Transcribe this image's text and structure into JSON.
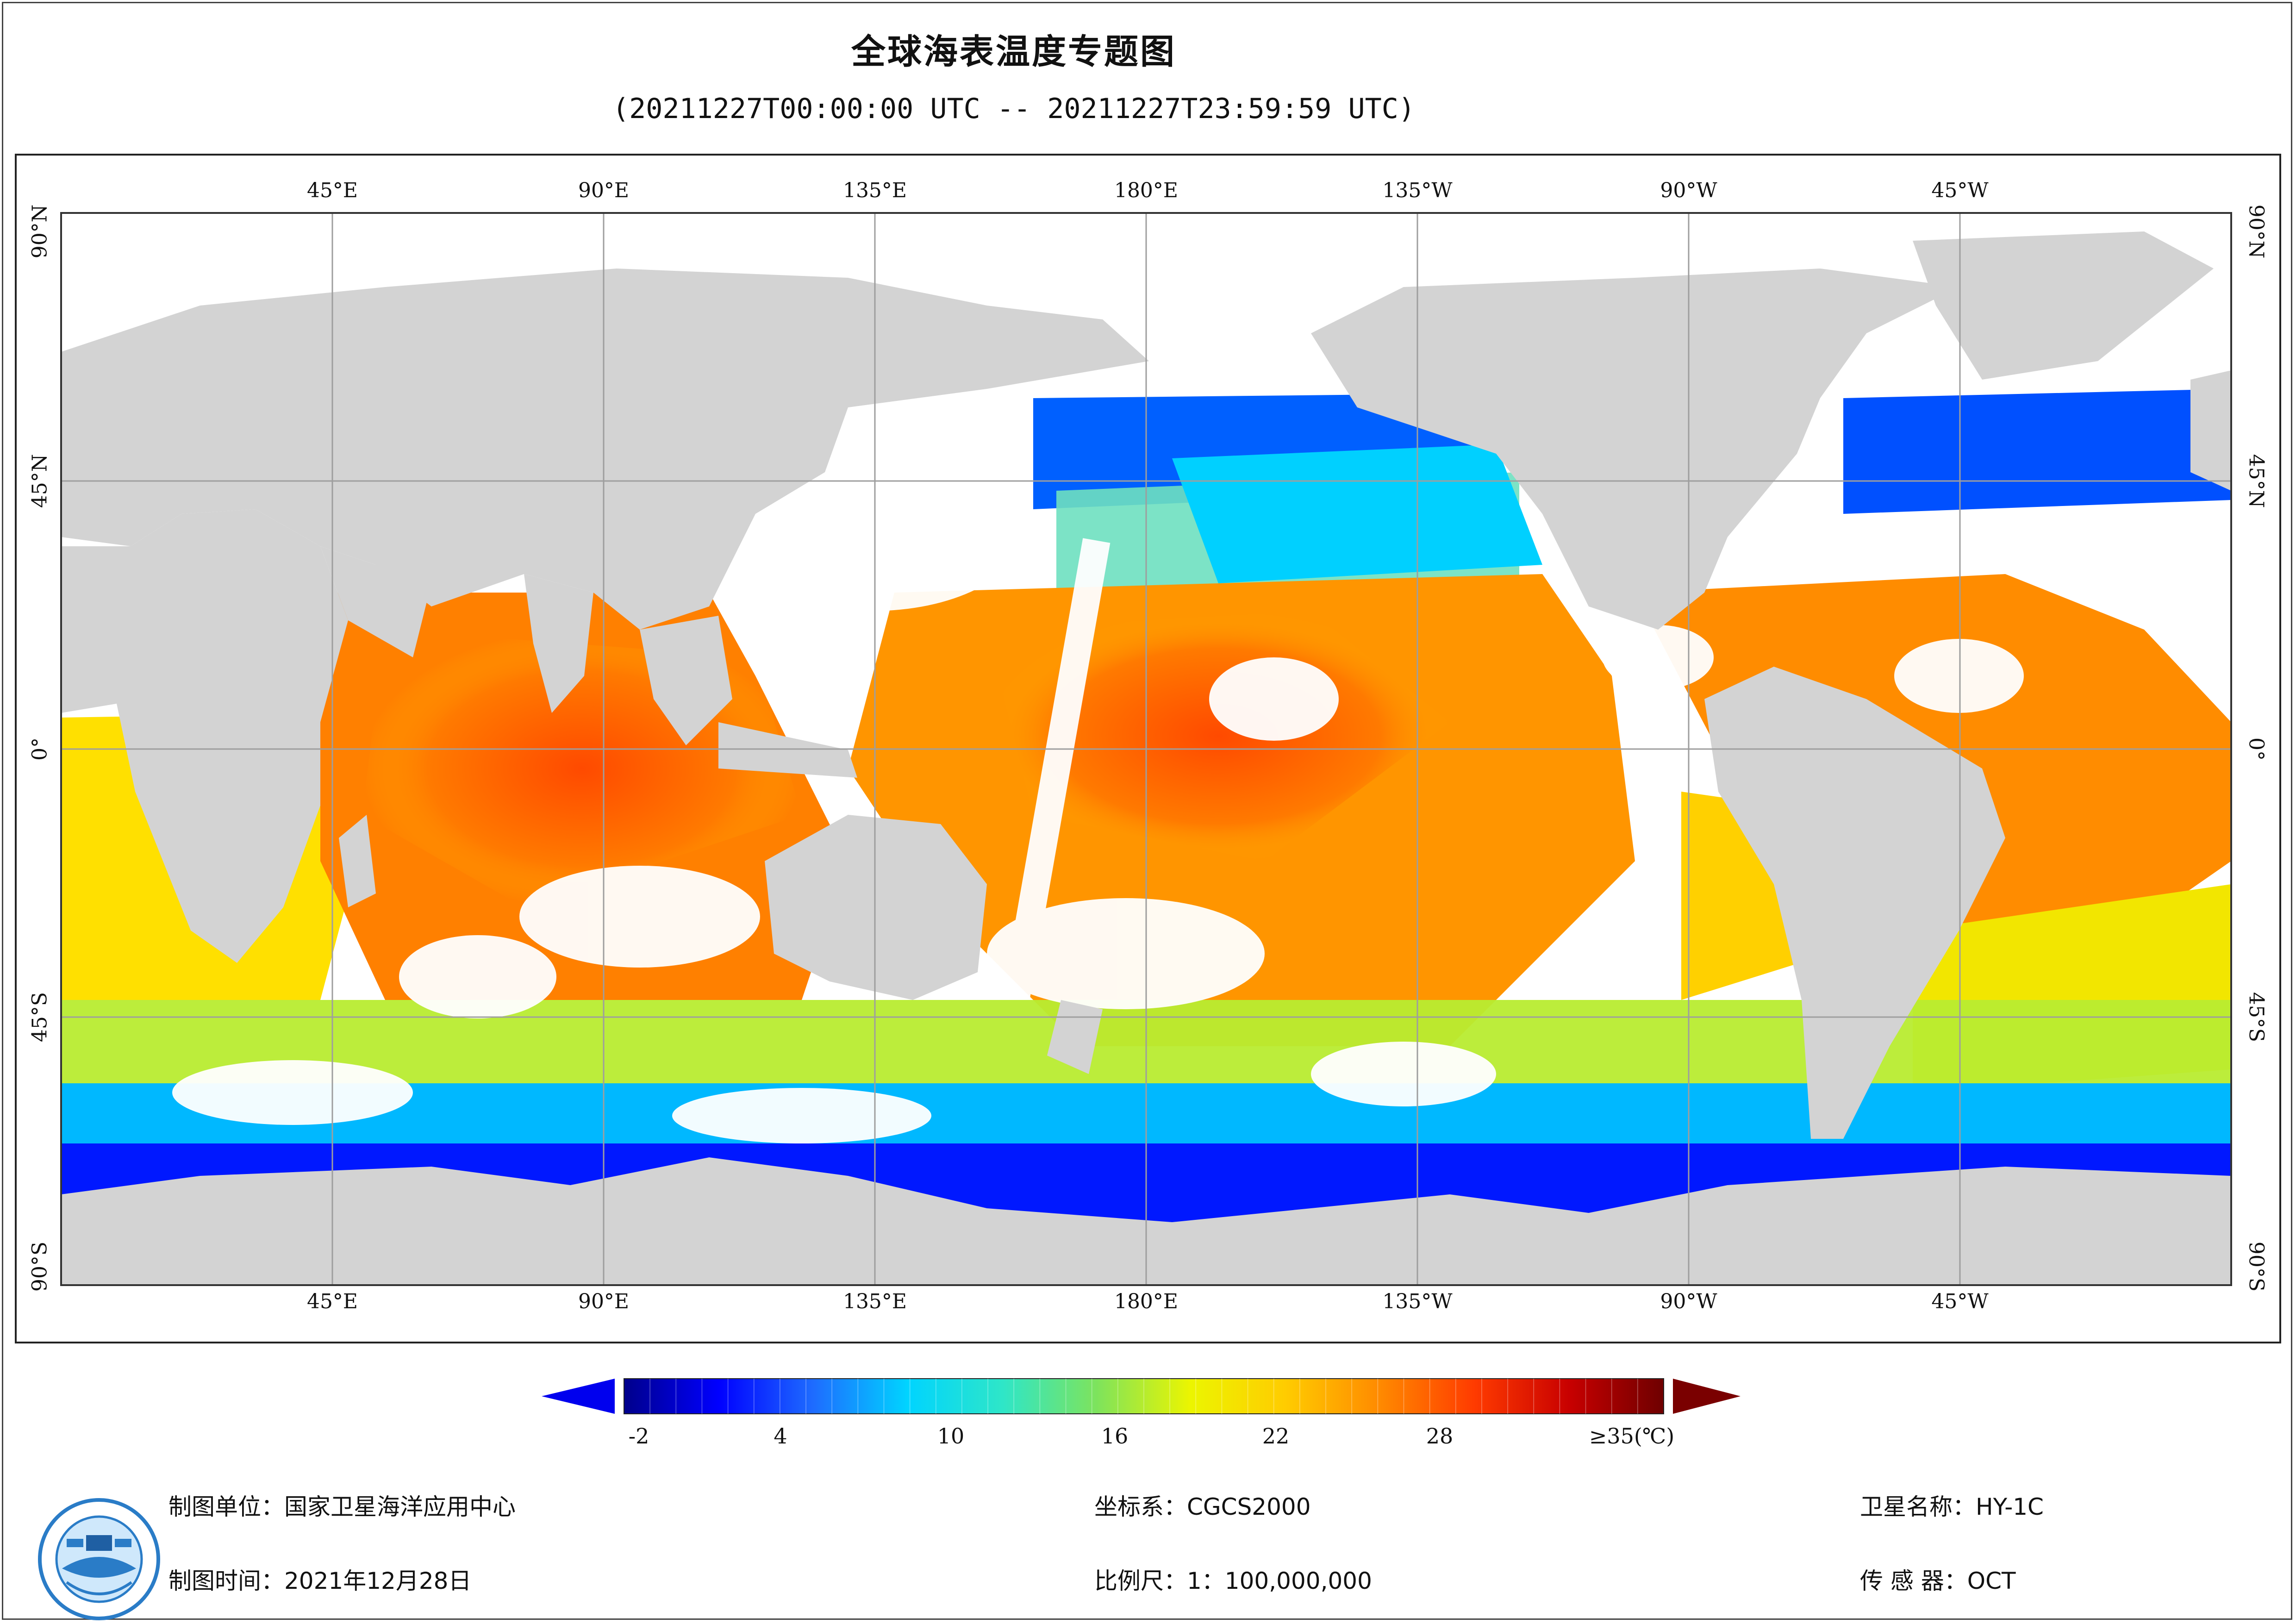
{
  "title": "全球海表温度专题图",
  "subtitle": "(20211227T00:00:00 UTC -- 20211227T23:59:59 UTC)",
  "map": {
    "lon_labels": [
      "45°E",
      "90°E",
      "135°E",
      "180°E",
      "135°W",
      "90°W",
      "45°W"
    ],
    "lat_labels": [
      "90°N",
      "45°N",
      "0°",
      "45°S",
      "90°S"
    ],
    "land_color": "#d3d3d3",
    "no_data_color": "#ffffff",
    "grid_color": "#9e9e9e"
  },
  "colorbar": {
    "tick_labels": [
      "-2",
      "4",
      "10",
      "16",
      "22",
      "28",
      "≥35(℃)"
    ],
    "colors": [
      "#00008b",
      "#0000ff",
      "#1e6cff",
      "#00d4ff",
      "#2ee6c8",
      "#7ee35c",
      "#ecf500",
      "#ffcc00",
      "#ff8a00",
      "#ff3b00",
      "#c80000",
      "#6e0000"
    ]
  },
  "footer": {
    "agency": "制图单位：国家卫星海洋应用中心",
    "date": "制图时间：2021年12月28日",
    "crs": "坐标系：CGCS2000",
    "scale": "比例尺：1：100,000,000",
    "satellite": "卫星名称：HY-1C",
    "sensor": "传 感 器：OCT"
  }
}
